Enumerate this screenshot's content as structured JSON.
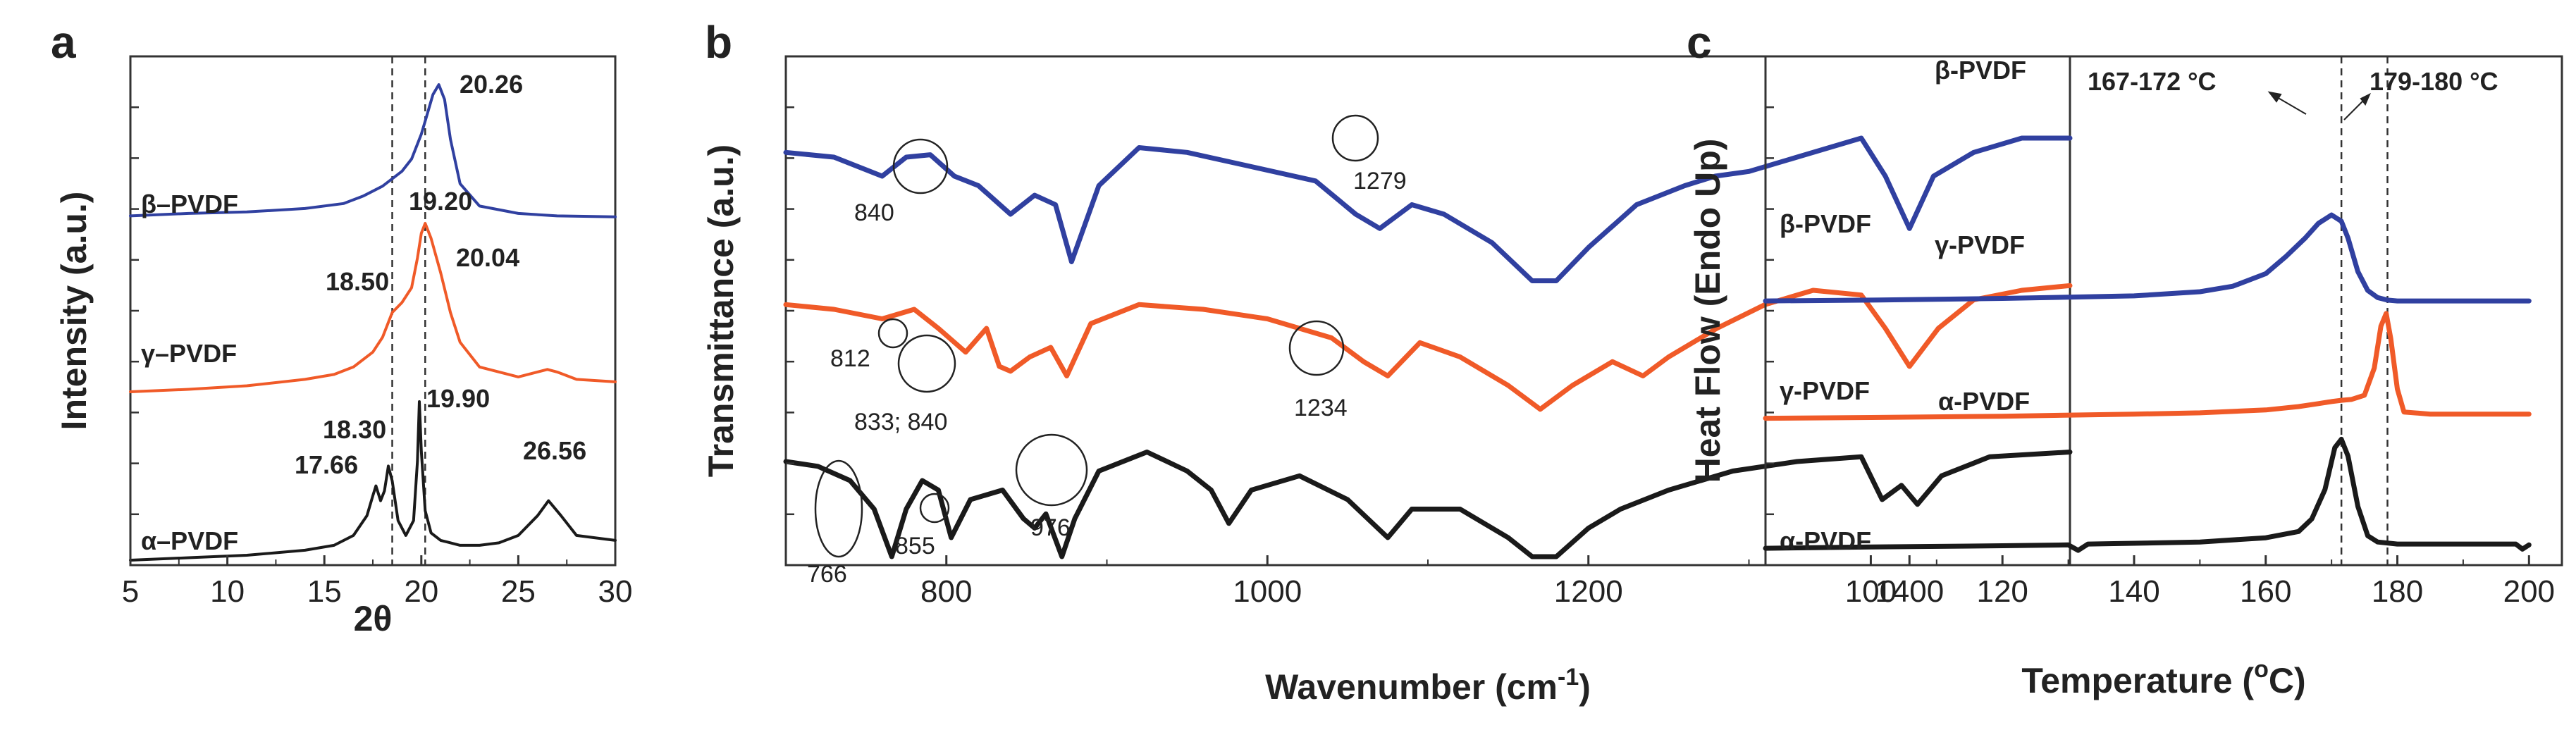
{
  "chart_data": [
    {
      "panel": "a",
      "type": "line",
      "title": "",
      "xlabel": "2θ",
      "ylabel": "Intensity (a.u.)",
      "xlim": [
        5,
        30
      ],
      "xticks": [
        5,
        10,
        15,
        20,
        25,
        30
      ],
      "xtick_labels": [
        "5",
        "10",
        "15",
        "20",
        "25",
        "30"
      ],
      "y_units": "offset intensity, 0-100 scale",
      "ylim": [
        0,
        100
      ],
      "reference_lines": [
        18.5,
        20.2
      ],
      "series": [
        {
          "name": "β–PVDF",
          "color": "#3040a0",
          "x": [
            5,
            8,
            11,
            14,
            16,
            17,
            18,
            18.5,
            19,
            19.5,
            20,
            20.3,
            20.6,
            20.9,
            21.2,
            21.5,
            22,
            23,
            25,
            27,
            30
          ],
          "y": [
            69.5,
            70.0,
            70.3,
            71.0,
            72.0,
            73.5,
            75.5,
            77.0,
            78.5,
            81.0,
            86.0,
            90.0,
            94.0,
            96.0,
            93.0,
            85.0,
            76.0,
            71.5,
            70.0,
            69.5,
            69.3
          ]
        },
        {
          "name": "γ–PVDF",
          "color": "#f05a28",
          "x": [
            5,
            8,
            11,
            14,
            15.5,
            16.5,
            17.5,
            18,
            18.5,
            19,
            19.5,
            19.8,
            20.0,
            20.2,
            20.5,
            21,
            21.5,
            22,
            23,
            25,
            26.5,
            27,
            28,
            30
          ],
          "y": [
            34.0,
            34.5,
            35.2,
            36.5,
            37.5,
            39.0,
            42.0,
            45.0,
            50.0,
            52.0,
            55.0,
            61.0,
            66.0,
            68.0,
            65.0,
            58.0,
            50.0,
            44.0,
            39.0,
            37.0,
            38.5,
            38.0,
            36.5,
            36.0
          ]
        },
        {
          "name": "α–PVDF",
          "color": "#1a1a1a",
          "x": [
            5,
            8,
            11,
            14,
            15.5,
            16.5,
            17.2,
            17.5,
            17.66,
            17.9,
            18.1,
            18.3,
            18.5,
            18.8,
            19.2,
            19.6,
            19.8,
            19.9,
            20.0,
            20.2,
            20.5,
            21,
            22,
            23,
            24,
            25,
            26,
            26.56,
            27.2,
            28,
            30
          ],
          "y": [
            0.0,
            0.5,
            1.0,
            2.0,
            3.0,
            5.0,
            9.0,
            13.0,
            15.0,
            12.0,
            14.0,
            19.0,
            16.0,
            8.0,
            5.0,
            8.0,
            20.0,
            32.0,
            22.0,
            10.0,
            5.5,
            4.0,
            3.0,
            3.0,
            3.5,
            5.0,
            9.0,
            12.0,
            9.0,
            5.0,
            4.0
          ]
        }
      ],
      "series_labels": [
        "β–PVDF",
        "γ–PVDF",
        "α–PVDF"
      ],
      "annotations": [
        "20.26",
        "19.20",
        "20.04",
        "18.50",
        "18.30",
        "19.90",
        "17.66",
        "26.56"
      ]
    },
    {
      "panel": "b",
      "type": "line",
      "title": "",
      "xlabel": "Wavenumber (cm",
      "xlabel_sup": "-1",
      "xlabel_end": ")",
      "ylabel": "Transmittance (a.u.)",
      "xlim": [
        700,
        1500
      ],
      "xticks": [
        800,
        1000,
        1200,
        1400
      ],
      "xtick_labels": [
        "800",
        "1000",
        "1200",
        "1400"
      ],
      "y_units": "offset transmittance, 0-100 scale",
      "ylim": [
        0,
        100
      ],
      "series": [
        {
          "name": "β-PVDF",
          "color": "#3040a0",
          "x": [
            700,
            730,
            760,
            775,
            790,
            805,
            820,
            840,
            855,
            868,
            878,
            895,
            920,
            950,
            990,
            1030,
            1055,
            1070,
            1090,
            1110,
            1140,
            1165,
            1180,
            1200,
            1230,
            1260,
            1279,
            1300,
            1330,
            1370,
            1385,
            1400,
            1415,
            1440,
            1470,
            1500
          ],
          "y": [
            85.0,
            84.0,
            80.0,
            84.0,
            84.5,
            80.0,
            78.0,
            72.0,
            76.0,
            74.0,
            62.0,
            78.0,
            86.0,
            85.0,
            82.0,
            79.0,
            72.0,
            69.0,
            74.0,
            72.0,
            66.0,
            58.0,
            58.0,
            65.0,
            74.0,
            78.0,
            80.0,
            81.0,
            84.0,
            88.0,
            80.0,
            69.0,
            80.0,
            85.0,
            88.0,
            88.0
          ]
        },
        {
          "name": "γ-PVDF",
          "color": "#f05a28",
          "x": [
            700,
            730,
            760,
            780,
            795,
            812,
            825,
            833,
            840,
            852,
            865,
            875,
            890,
            920,
            960,
            1000,
            1040,
            1060,
            1075,
            1095,
            1120,
            1150,
            1170,
            1190,
            1215,
            1234,
            1250,
            1280,
            1310,
            1340,
            1370,
            1385,
            1400,
            1418,
            1440,
            1470,
            1500
          ],
          "y": [
            53.0,
            52.0,
            50.0,
            52.0,
            48.0,
            43.0,
            48.0,
            40.0,
            39.0,
            42.0,
            44.0,
            38.0,
            49.0,
            53.0,
            52.0,
            50.0,
            46.0,
            41.0,
            38.0,
            45.0,
            42.0,
            36.0,
            31.0,
            36.0,
            41.0,
            38.0,
            42.0,
            48.0,
            53.0,
            56.0,
            55.0,
            48.0,
            40.0,
            48.0,
            54.0,
            56.0,
            57.0
          ]
        },
        {
          "name": "α-PVDF",
          "color": "#1a1a1a",
          "x": [
            700,
            720,
            740,
            755,
            766,
            775,
            785,
            795,
            803,
            815,
            835,
            848,
            855,
            862,
            872,
            880,
            895,
            925,
            950,
            965,
            976,
            990,
            1020,
            1050,
            1075,
            1090,
            1120,
            1150,
            1165,
            1180,
            1200,
            1220,
            1250,
            1290,
            1330,
            1370,
            1383,
            1395,
            1405,
            1420,
            1450,
            1500
          ],
          "y": [
            20.0,
            19.0,
            16.0,
            10.0,
            0.0,
            10.0,
            16.0,
            14.0,
            4.0,
            12.0,
            14.0,
            8.0,
            6.0,
            9.0,
            0.0,
            8.0,
            18.0,
            22.0,
            18.0,
            14.0,
            7.0,
            14.0,
            17.0,
            12.0,
            4.0,
            10.0,
            10.0,
            4.0,
            0.0,
            0.0,
            6.0,
            10.0,
            14.0,
            18.0,
            20.0,
            21.0,
            12.0,
            15.0,
            11.0,
            17.0,
            21.0,
            22.0
          ]
        }
      ],
      "series_labels": [
        "β-PVDF",
        "γ-PVDF",
        "α-PVDF"
      ],
      "annotations": [
        "840",
        "1279",
        "812",
        "833; 840",
        "1234",
        "766",
        "855",
        "976"
      ]
    },
    {
      "panel": "c",
      "type": "line",
      "title": "",
      "xlabel": "Temperature (",
      "xlabel_sup": "o",
      "xlabel_end": "C)",
      "ylabel": "Heat Flow (Endo Up)",
      "xlim": [
        84,
        205
      ],
      "xticks": [
        100,
        120,
        140,
        160,
        180,
        200
      ],
      "xtick_labels": [
        "100",
        "120",
        "140",
        "160",
        "180",
        "200"
      ],
      "y_units": "offset heat flow, 0-100 scale",
      "ylim": [
        0,
        100
      ],
      "reference_lines": [
        171.5,
        178.5
      ],
      "series": [
        {
          "name": "β-PVDF",
          "color": "#3040a0",
          "x": [
            84,
            100,
            120,
            140,
            150,
            155,
            160,
            163,
            166,
            168,
            170,
            171.5,
            172.5,
            174,
            175.5,
            177,
            178.5,
            180,
            185,
            190,
            200
          ],
          "y": [
            61.0,
            61.2,
            61.6,
            62.2,
            63.2,
            64.5,
            67.5,
            71.5,
            76.0,
            79.5,
            81.5,
            80.0,
            76.0,
            68.0,
            63.5,
            61.8,
            61.2,
            61.0,
            61.0,
            61.0,
            61.0
          ]
        },
        {
          "name": "γ-PVDF",
          "color": "#f05a28",
          "x": [
            84,
            100,
            120,
            140,
            150,
            160,
            165,
            168,
            170,
            171.5,
            173,
            175,
            176.5,
            177.5,
            178.3,
            179,
            180,
            181,
            185,
            190,
            200
          ],
          "y": [
            33.0,
            33.2,
            33.5,
            34.0,
            34.3,
            35.0,
            35.8,
            36.5,
            37.0,
            37.3,
            37.5,
            38.5,
            45.0,
            55.0,
            58.0,
            52.0,
            40.0,
            34.5,
            34.0,
            34.0,
            34.0
          ]
        },
        {
          "name": "α-PVDF",
          "color": "#1a1a1a",
          "x": [
            84,
            100,
            120,
            130,
            131.5,
            133,
            140,
            150,
            160,
            165,
            167,
            169,
            170.5,
            171.5,
            172.5,
            174,
            175.5,
            177,
            180,
            190,
            198,
            199,
            200
          ],
          "y": [
            2.0,
            2.3,
            2.6,
            2.8,
            1.5,
            3.0,
            3.2,
            3.5,
            4.5,
            6.0,
            9.0,
            16.0,
            26.0,
            28.0,
            24.0,
            12.0,
            5.0,
            3.5,
            3.0,
            3.0,
            3.0,
            1.8,
            2.8
          ]
        }
      ],
      "series_labels": [
        "β-PVDF",
        "γ-PVDF",
        "α-PVDF"
      ],
      "annotations": [
        "167-172 °C",
        "179-180 °C"
      ]
    }
  ],
  "panel_letters": [
    "a",
    "b",
    "c"
  ]
}
